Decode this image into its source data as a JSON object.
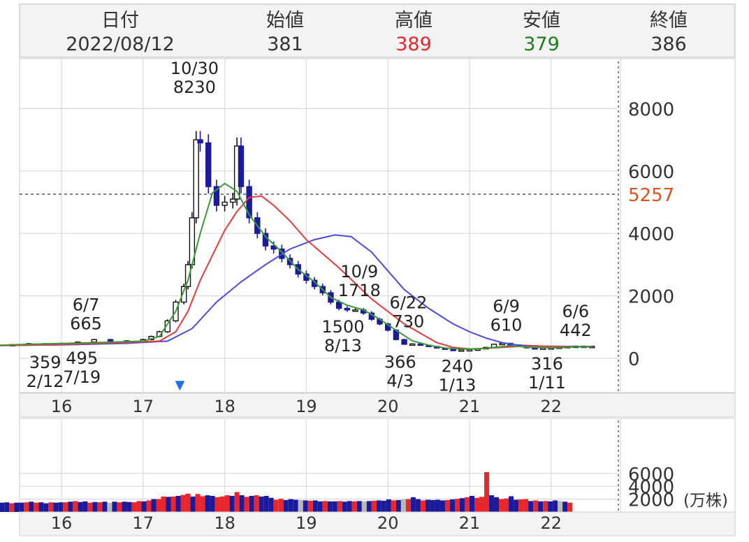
{
  "header": {
    "cols": [
      {
        "label": "日付",
        "value": "2022/08/12",
        "color": "#333333"
      },
      {
        "label": "始値",
        "value": "381",
        "color": "#333333"
      },
      {
        "label": "高値",
        "value": "389",
        "color": "#e8262b"
      },
      {
        "label": "安値",
        "value": "379",
        "color": "#1e7b1e"
      },
      {
        "label": "終値",
        "value": "386",
        "color": "#333333"
      }
    ]
  },
  "chart_data": [
    {
      "type": "candlestick",
      "x_ticks": [
        "16",
        "17",
        "18",
        "19",
        "20",
        "21",
        "22"
      ],
      "y_ticks": [
        "8000",
        "6000",
        "4000",
        "2000",
        "0"
      ],
      "ylim": [
        -1000,
        9500
      ],
      "grid": true,
      "reference_line": {
        "value": 5257,
        "label": "5257",
        "color": "#d9531e"
      },
      "marker": {
        "symbol": "▼",
        "x": 17.45,
        "color": "#1e6fe8"
      },
      "annotations": [
        {
          "lines": [
            "10/30",
            "8230"
          ],
          "x": 17.63,
          "y": 8230,
          "pos": "above"
        },
        {
          "lines": [
            "6/7",
            "665"
          ],
          "x": 16.3,
          "y": 665,
          "pos": "above"
        },
        {
          "lines": [
            "359",
            "2/12"
          ],
          "x": 15.8,
          "y": 359,
          "pos": "below"
        },
        {
          "lines": [
            "495",
            "7/19"
          ],
          "x": 16.25,
          "y": 495,
          "pos": "below"
        },
        {
          "lines": [
            "10/9",
            "1718"
          ],
          "x": 19.65,
          "y": 1718,
          "pos": "above"
        },
        {
          "lines": [
            "1500",
            "8/13"
          ],
          "x": 19.45,
          "y": 1500,
          "pos": "below"
        },
        {
          "lines": [
            "6/22",
            "730"
          ],
          "x": 20.25,
          "y": 730,
          "pos": "above"
        },
        {
          "lines": [
            "366",
            "4/3"
          ],
          "x": 20.15,
          "y": 366,
          "pos": "below"
        },
        {
          "lines": [
            "240",
            "1/13"
          ],
          "x": 20.85,
          "y": 240,
          "pos": "below"
        },
        {
          "lines": [
            "6/9",
            "610"
          ],
          "x": 21.45,
          "y": 610,
          "pos": "above"
        },
        {
          "lines": [
            "316",
            "1/11"
          ],
          "x": 21.95,
          "y": 316,
          "pos": "below"
        },
        {
          "lines": [
            "6/6",
            "442"
          ],
          "x": 22.3,
          "y": 442,
          "pos": "above"
        }
      ],
      "ohlc_points": [
        [
          15.0,
          400
        ],
        [
          15.2,
          430
        ],
        [
          15.4,
          440
        ],
        [
          15.6,
          470
        ],
        [
          15.8,
          460
        ],
        [
          16.0,
          480
        ],
        [
          16.2,
          520
        ],
        [
          16.4,
          600
        ],
        [
          16.6,
          560
        ],
        [
          16.8,
          540
        ],
        [
          17.0,
          600
        ],
        [
          17.1,
          700
        ],
        [
          17.2,
          850
        ],
        [
          17.3,
          1200
        ],
        [
          17.4,
          1800
        ],
        [
          17.5,
          2300
        ],
        [
          17.55,
          3000
        ],
        [
          17.6,
          4500
        ],
        [
          17.65,
          7000
        ],
        [
          17.7,
          6900
        ],
        [
          17.8,
          5500
        ],
        [
          17.9,
          4900
        ],
        [
          18.0,
          5000
        ],
        [
          18.1,
          5100
        ],
        [
          18.15,
          6800
        ],
        [
          18.2,
          5500
        ],
        [
          18.3,
          4500
        ],
        [
          18.4,
          4000
        ],
        [
          18.5,
          3600
        ],
        [
          18.6,
          3500
        ],
        [
          18.7,
          3200
        ],
        [
          18.8,
          3000
        ],
        [
          18.9,
          2700
        ],
        [
          19.0,
          2500
        ],
        [
          19.1,
          2300
        ],
        [
          19.2,
          2100
        ],
        [
          19.3,
          1800
        ],
        [
          19.4,
          1600
        ],
        [
          19.5,
          1550
        ],
        [
          19.6,
          1550
        ],
        [
          19.7,
          1450
        ],
        [
          19.8,
          1250
        ],
        [
          19.9,
          1100
        ],
        [
          20.0,
          900
        ],
        [
          20.1,
          600
        ],
        [
          20.2,
          450
        ],
        [
          20.3,
          460
        ],
        [
          20.4,
          420
        ],
        [
          20.5,
          380
        ],
        [
          20.6,
          330
        ],
        [
          20.7,
          290
        ],
        [
          20.8,
          260
        ],
        [
          20.9,
          270
        ],
        [
          21.0,
          280
        ],
        [
          21.1,
          300
        ],
        [
          21.2,
          350
        ],
        [
          21.3,
          450
        ],
        [
          21.4,
          480
        ],
        [
          21.5,
          430
        ],
        [
          21.6,
          380
        ],
        [
          21.7,
          340
        ],
        [
          21.8,
          320
        ],
        [
          21.9,
          330
        ],
        [
          22.0,
          340
        ],
        [
          22.1,
          360
        ],
        [
          22.2,
          380
        ],
        [
          22.3,
          390
        ],
        [
          22.4,
          370
        ],
        [
          22.5,
          386
        ]
      ],
      "ma_short": [
        [
          15.0,
          400
        ],
        [
          15.6,
          450
        ],
        [
          16.4,
          500
        ],
        [
          17.0,
          550
        ],
        [
          17.2,
          700
        ],
        [
          17.4,
          1500
        ],
        [
          17.55,
          2500
        ],
        [
          17.7,
          4000
        ],
        [
          17.85,
          5300
        ],
        [
          18.0,
          5600
        ],
        [
          18.15,
          5350
        ],
        [
          18.3,
          4600
        ],
        [
          18.5,
          3900
        ],
        [
          18.7,
          3400
        ],
        [
          18.9,
          2850
        ],
        [
          19.1,
          2450
        ],
        [
          19.3,
          1950
        ],
        [
          19.5,
          1700
        ],
        [
          19.7,
          1550
        ],
        [
          19.9,
          1250
        ],
        [
          20.1,
          900
        ],
        [
          20.3,
          560
        ],
        [
          20.5,
          420
        ],
        [
          20.7,
          330
        ],
        [
          20.9,
          300
        ],
        [
          21.1,
          300
        ],
        [
          21.3,
          350
        ],
        [
          21.5,
          400
        ],
        [
          21.7,
          360
        ],
        [
          21.9,
          340
        ],
        [
          22.1,
          340
        ],
        [
          22.3,
          370
        ],
        [
          22.5,
          380
        ]
      ],
      "ma_mid": [
        [
          15.0,
          400
        ],
        [
          15.8,
          430
        ],
        [
          16.6,
          490
        ],
        [
          17.2,
          550
        ],
        [
          17.4,
          850
        ],
        [
          17.55,
          1500
        ],
        [
          17.7,
          2500
        ],
        [
          17.85,
          3300
        ],
        [
          18.0,
          4100
        ],
        [
          18.15,
          4700
        ],
        [
          18.3,
          5150
        ],
        [
          18.45,
          5200
        ],
        [
          18.6,
          4900
        ],
        [
          18.8,
          4400
        ],
        [
          19.0,
          3800
        ],
        [
          19.2,
          3350
        ],
        [
          19.4,
          2900
        ],
        [
          19.6,
          2400
        ],
        [
          19.8,
          1900
        ],
        [
          20.0,
          1500
        ],
        [
          20.2,
          1100
        ],
        [
          20.4,
          800
        ],
        [
          20.6,
          500
        ],
        [
          20.8,
          350
        ],
        [
          21.0,
          300
        ],
        [
          21.2,
          320
        ],
        [
          21.4,
          350
        ],
        [
          21.6,
          380
        ],
        [
          21.8,
          400
        ],
        [
          22.0,
          380
        ],
        [
          22.2,
          370
        ],
        [
          22.5,
          370
        ]
      ],
      "ma_long": [
        [
          15.0,
          400
        ],
        [
          16.0,
          430
        ],
        [
          16.8,
          480
        ],
        [
          17.3,
          550
        ],
        [
          17.6,
          950
        ],
        [
          17.9,
          1800
        ],
        [
          18.2,
          2450
        ],
        [
          18.5,
          3000
        ],
        [
          18.8,
          3500
        ],
        [
          19.1,
          3800
        ],
        [
          19.35,
          3950
        ],
        [
          19.55,
          3900
        ],
        [
          19.8,
          3400
        ],
        [
          20.0,
          2800
        ],
        [
          20.2,
          2200
        ],
        [
          20.5,
          1600
        ],
        [
          20.8,
          1100
        ],
        [
          21.0,
          850
        ],
        [
          21.2,
          650
        ],
        [
          21.4,
          500
        ],
        [
          21.6,
          420
        ],
        [
          21.9,
          390
        ],
        [
          22.2,
          380
        ],
        [
          22.5,
          370
        ]
      ]
    },
    {
      "type": "bar",
      "unit_label": "(万株)",
      "x_ticks": [
        "16",
        "17",
        "18",
        "19",
        "20",
        "21",
        "22"
      ],
      "y_ticks": [
        "6000",
        "4000",
        "2000"
      ],
      "ylim": [
        0,
        6500
      ],
      "series_colors": [
        "#e8262b",
        "#1a1a9a",
        "#b8b8b8"
      ],
      "volume_points": [
        [
          15.03,
          1500,
          0
        ],
        [
          15.09,
          1500,
          1
        ],
        [
          15.15,
          1450,
          0
        ],
        [
          15.21,
          1500,
          1
        ],
        [
          15.27,
          1450,
          1
        ],
        [
          15.33,
          1500,
          1
        ],
        [
          15.39,
          1350,
          0
        ],
        [
          15.45,
          1450,
          1
        ],
        [
          15.51,
          1450,
          1
        ],
        [
          15.57,
          1500,
          0
        ],
        [
          15.63,
          1600,
          1
        ],
        [
          15.69,
          1450,
          0
        ],
        [
          15.75,
          1500,
          1
        ],
        [
          15.81,
          1350,
          1
        ],
        [
          15.87,
          1500,
          0
        ],
        [
          15.93,
          1450,
          1
        ],
        [
          15.99,
          1500,
          1
        ],
        [
          16.05,
          1500,
          0
        ],
        [
          16.11,
          1600,
          1
        ],
        [
          16.17,
          1700,
          0
        ],
        [
          16.23,
          1550,
          1
        ],
        [
          16.29,
          1650,
          1
        ],
        [
          16.35,
          1450,
          0
        ],
        [
          16.41,
          1550,
          1
        ],
        [
          16.47,
          1500,
          0
        ],
        [
          16.53,
          1600,
          1
        ],
        [
          16.59,
          1400,
          2
        ],
        [
          16.65,
          1600,
          1
        ],
        [
          16.71,
          1500,
          0
        ],
        [
          16.77,
          1600,
          1
        ],
        [
          16.83,
          1550,
          1
        ],
        [
          16.89,
          1500,
          0
        ],
        [
          16.95,
          1700,
          0
        ],
        [
          17.01,
          1650,
          1
        ],
        [
          17.07,
          1800,
          0
        ],
        [
          17.13,
          2000,
          1
        ],
        [
          17.19,
          2000,
          0
        ],
        [
          17.25,
          2400,
          0
        ],
        [
          17.31,
          2350,
          1
        ],
        [
          17.37,
          2400,
          0
        ],
        [
          17.43,
          2500,
          1
        ],
        [
          17.49,
          2650,
          0
        ],
        [
          17.55,
          2850,
          0
        ],
        [
          17.61,
          2400,
          1
        ],
        [
          17.67,
          2800,
          0
        ],
        [
          17.73,
          2450,
          0
        ],
        [
          17.79,
          2600,
          1
        ],
        [
          17.85,
          2500,
          1
        ],
        [
          17.91,
          2300,
          0
        ],
        [
          17.97,
          2400,
          0
        ],
        [
          18.03,
          2600,
          0
        ],
        [
          18.09,
          2500,
          1
        ],
        [
          18.15,
          3100,
          0
        ],
        [
          18.21,
          2600,
          1
        ],
        [
          18.27,
          2350,
          0
        ],
        [
          18.33,
          2500,
          1
        ],
        [
          18.39,
          2600,
          0
        ],
        [
          18.45,
          2400,
          1
        ],
        [
          18.51,
          2500,
          1
        ],
        [
          18.57,
          2200,
          1
        ],
        [
          18.63,
          1900,
          0
        ],
        [
          18.69,
          2050,
          0
        ],
        [
          18.75,
          1850,
          1
        ],
        [
          18.81,
          2000,
          1
        ],
        [
          18.87,
          1900,
          1
        ],
        [
          18.93,
          1850,
          2
        ],
        [
          18.99,
          1800,
          1
        ],
        [
          19.05,
          1750,
          0
        ],
        [
          19.11,
          1800,
          1
        ],
        [
          19.17,
          1650,
          1
        ],
        [
          19.23,
          1700,
          0
        ],
        [
          19.29,
          1650,
          1
        ],
        [
          19.35,
          1650,
          1
        ],
        [
          19.41,
          1700,
          0
        ],
        [
          19.47,
          1600,
          1
        ],
        [
          19.53,
          1700,
          1
        ],
        [
          19.59,
          1650,
          0
        ],
        [
          19.65,
          1700,
          1
        ],
        [
          19.71,
          1650,
          2
        ],
        [
          19.77,
          1700,
          1
        ],
        [
          19.83,
          1750,
          0
        ],
        [
          19.89,
          1800,
          1
        ],
        [
          19.95,
          1750,
          1
        ],
        [
          20.01,
          1950,
          1
        ],
        [
          20.07,
          1800,
          0
        ],
        [
          20.13,
          1850,
          1
        ],
        [
          20.19,
          1950,
          2
        ],
        [
          20.25,
          2000,
          0
        ],
        [
          20.31,
          2300,
          1
        ],
        [
          20.37,
          2000,
          1
        ],
        [
          20.43,
          1800,
          0
        ],
        [
          20.49,
          1900,
          1
        ],
        [
          20.55,
          1850,
          1
        ],
        [
          20.61,
          1900,
          1
        ],
        [
          20.67,
          1800,
          1
        ],
        [
          20.73,
          1850,
          0
        ],
        [
          20.79,
          1950,
          1
        ],
        [
          20.85,
          2050,
          0
        ],
        [
          20.91,
          2150,
          1
        ],
        [
          20.97,
          2300,
          0
        ],
        [
          21.03,
          2500,
          1
        ],
        [
          21.09,
          2200,
          0
        ],
        [
          21.15,
          2350,
          0
        ],
        [
          21.21,
          6200,
          0
        ],
        [
          21.27,
          2600,
          1
        ],
        [
          21.33,
          2300,
          1
        ],
        [
          21.39,
          2000,
          0
        ],
        [
          21.45,
          2100,
          0
        ],
        [
          21.51,
          2450,
          1
        ],
        [
          21.57,
          1900,
          1
        ],
        [
          21.63,
          1950,
          0
        ],
        [
          21.69,
          2000,
          0
        ],
        [
          21.75,
          1700,
          1
        ],
        [
          21.81,
          1800,
          0
        ],
        [
          21.87,
          1650,
          1
        ],
        [
          21.93,
          1700,
          0
        ],
        [
          21.99,
          1650,
          1
        ],
        [
          22.05,
          1800,
          1
        ],
        [
          22.11,
          1700,
          2
        ],
        [
          22.17,
          1600,
          1
        ],
        [
          22.23,
          1450,
          0
        ]
      ]
    }
  ]
}
